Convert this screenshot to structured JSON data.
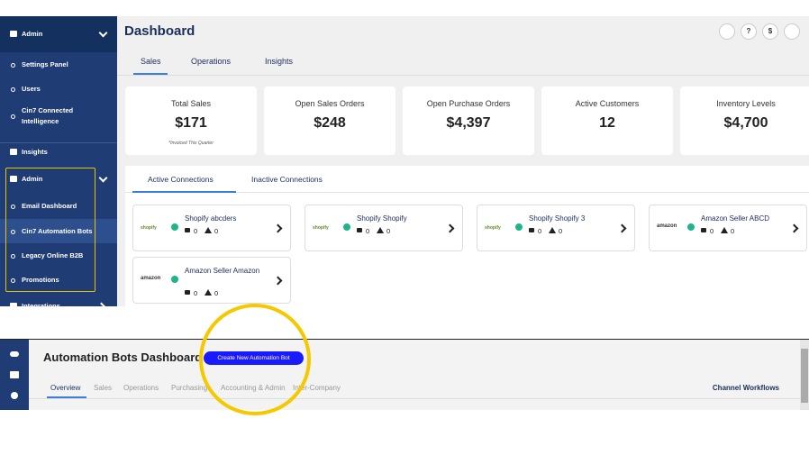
{
  "sidebar": {
    "items": [
      {
        "label": "Admin",
        "kind": "head"
      },
      {
        "label": "Settings Panel",
        "kind": "item"
      },
      {
        "label": "Users",
        "kind": "item"
      },
      {
        "label": "Cin7 Connected Intelligence",
        "kind": "item"
      },
      {
        "label": "Insights",
        "kind": "section"
      },
      {
        "label": "Admin",
        "kind": "head"
      },
      {
        "label": "Email Dashboard",
        "kind": "item"
      },
      {
        "label": "Cin7 Automation Bots",
        "kind": "active"
      },
      {
        "label": "Legacy Online B2B",
        "kind": "item"
      },
      {
        "label": "Promotions",
        "kind": "item"
      },
      {
        "label": "Integrations",
        "kind": "section"
      }
    ]
  },
  "header": {
    "title": "Dashboard",
    "tabs": [
      "Sales",
      "Operations",
      "Insights"
    ],
    "icons": [
      "?",
      "$"
    ]
  },
  "cards": [
    {
      "title": "Total Sales",
      "value": "$171",
      "note": "*Invoiced This Quarter"
    },
    {
      "title": "Open Sales Orders",
      "value": "$248"
    },
    {
      "title": "Open Purchase Orders",
      "value": "$4,397"
    },
    {
      "title": "Active Customers",
      "value": "12"
    },
    {
      "title": "Inventory Levels",
      "value": "$4,700"
    }
  ],
  "connections": {
    "tabs": [
      "Active Connections",
      "Inactive Connections"
    ],
    "items": [
      {
        "logo": "shopify",
        "name": "Shopify abcders",
        "orders": 0,
        "alerts": 0
      },
      {
        "logo": "shopify",
        "name": "Shopify Shopify",
        "orders": 0,
        "alerts": 0
      },
      {
        "logo": "shopify",
        "name": "Shopify Shopify 3",
        "orders": 0,
        "alerts": 0
      },
      {
        "logo": "amazon",
        "name": "Amazon Seller ABCD",
        "orders": 0,
        "alerts": 0
      },
      {
        "logo": "amazon",
        "name": "Amazon Seller Amazon",
        "orders": 0,
        "alerts": 0
      }
    ]
  },
  "automation": {
    "title": "Automation Bots Dashboard",
    "button": "Create New Automation Bot",
    "tabs": [
      "Overview",
      "Sales",
      "Operations",
      "Purchasing",
      "Accounting & Admin",
      "Inter-Company"
    ],
    "right_link": "Channel Workflows"
  }
}
